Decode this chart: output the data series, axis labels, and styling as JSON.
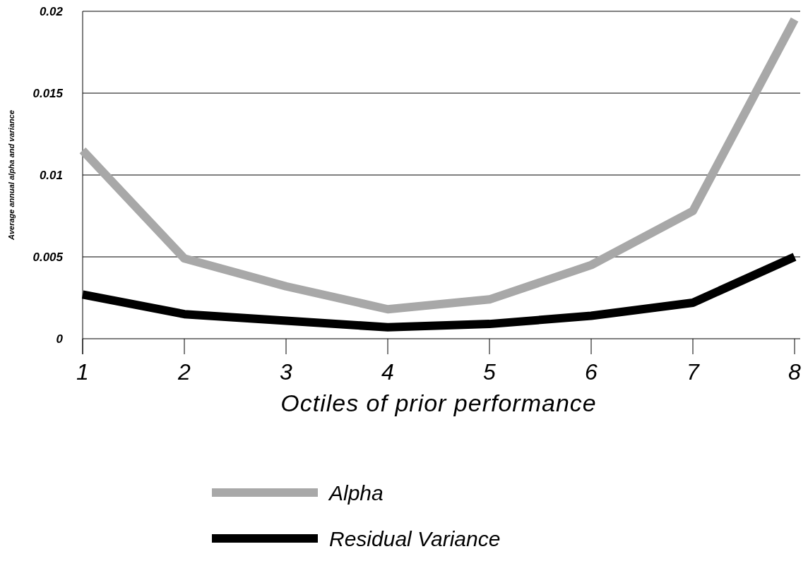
{
  "chart_data": {
    "type": "line",
    "xlabel": "Octiles of prior performance",
    "ylabel": "Average annual alpha and variance",
    "categories": [
      "1",
      "2",
      "3",
      "4",
      "5",
      "6",
      "7",
      "8"
    ],
    "series": [
      {
        "name": "Alpha",
        "color": "#a8a8a8",
        "values": [
          0.0115,
          0.0049,
          0.0032,
          0.0018,
          0.0024,
          0.0045,
          0.0078,
          0.0195
        ]
      },
      {
        "name": "Residual Variance",
        "color": "#000000",
        "values": [
          0.0027,
          0.0015,
          0.0011,
          0.0007,
          0.0009,
          0.0014,
          0.0022,
          0.005
        ]
      }
    ],
    "ylim": [
      0,
      0.02
    ],
    "yticks": [
      0,
      0.005,
      0.01,
      0.015,
      0.02
    ],
    "grid": "y",
    "legend": "bottom",
    "marker": "none",
    "line_style": "solid"
  }
}
